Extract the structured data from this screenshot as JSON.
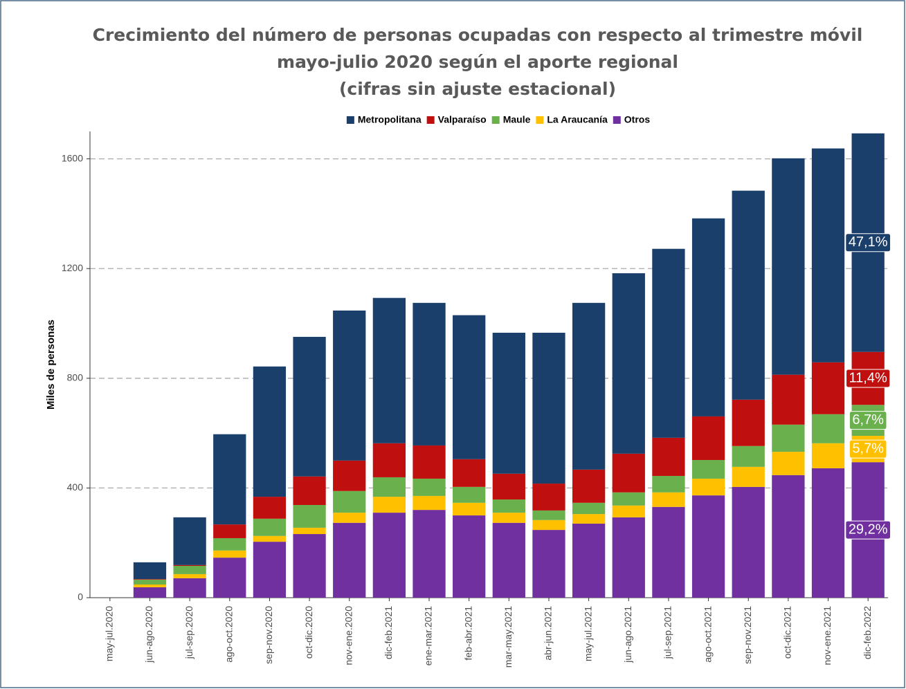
{
  "chart_data": {
    "type": "stacked_bar",
    "title_lines": [
      "Crecimiento del número de personas ocupadas con respecto al trimestre móvil",
      "mayo-julio 2020 según el aporte regional",
      "(cifras sin ajuste estacional)"
    ],
    "y_label": "Miles de personas",
    "categories": [
      "may-jul.2020",
      "jun-ago.2020",
      "jul-sep.2020",
      "ago-oct.2020",
      "sep-nov.2020",
      "oct-dic.2020",
      "nov-ene.2020",
      "dic-feb.2021",
      "ene-mar.2021",
      "feb-abr.2021",
      "mar-may.2021",
      "abr-jun.2021",
      "may-jul.2021",
      "jun-ago.2021",
      "jul-sep.2021",
      "ago-oct.2021",
      "sep-nov.2021",
      "oct-dic.2021",
      "nov-ene.2021",
      "dic-feb.2022"
    ],
    "series": [
      {
        "name": "Metropolitana",
        "color": "#1b3f6b",
        "share_label": "47,1%",
        "values": [
          0,
          61,
          174,
          329,
          475,
          509,
          547,
          530,
          520,
          525,
          514,
          550,
          608,
          658,
          689,
          722,
          762,
          789,
          780,
          797
        ]
      },
      {
        "name": "Valparaíso",
        "color": "#c00f0f",
        "share_label": "11,4%",
        "values": [
          0,
          2,
          3,
          50,
          80,
          104,
          111,
          124,
          121,
          101,
          94,
          98,
          121,
          141,
          139,
          159,
          169,
          182,
          189,
          193
        ]
      },
      {
        "name": "Maule",
        "color": "#6ab04c",
        "share_label": "6,7%",
        "values": [
          0,
          18,
          30,
          45,
          63,
          83,
          79,
          71,
          63,
          58,
          48,
          35,
          41,
          48,
          60,
          68,
          76,
          99,
          106,
          113
        ]
      },
      {
        "name": "La Araucanía",
        "color": "#ffc000",
        "share_label": "5,7%",
        "values": [
          0,
          10,
          15,
          26,
          21,
          23,
          37,
          58,
          51,
          46,
          37,
          36,
          35,
          43,
          53,
          61,
          73,
          85,
          91,
          96
        ]
      },
      {
        "name": "Otros",
        "color": "#7030a0",
        "share_label": "29,2%",
        "values": [
          0,
          38,
          71,
          146,
          204,
          232,
          273,
          310,
          320,
          300,
          273,
          247,
          270,
          293,
          331,
          373,
          404,
          447,
          472,
          494
        ]
      }
    ],
    "ylim": [
      0,
      1700
    ],
    "yticks": [
      0,
      400,
      800,
      1200,
      1600
    ],
    "grid": true
  }
}
